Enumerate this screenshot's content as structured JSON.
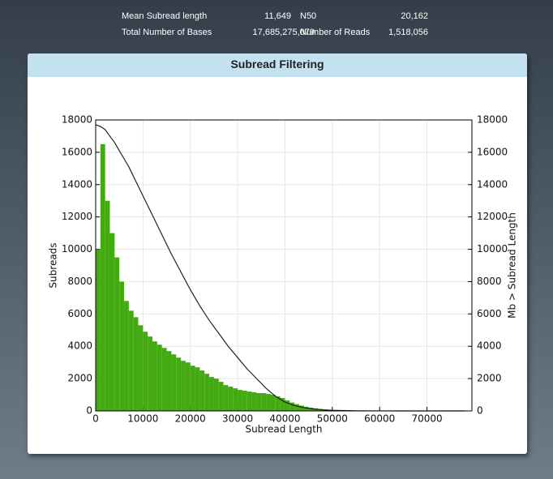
{
  "stats": [
    {
      "label": "Mean Subread length",
      "value": "11,649"
    },
    {
      "label": "N50",
      "value": "20,162"
    },
    {
      "label": "Total Number of Bases",
      "value": "17,685,275,079"
    },
    {
      "label": "Number of Reads",
      "value": "1,518,056"
    }
  ],
  "chart_data": {
    "type": "histogram",
    "title": "Subread Filtering",
    "xlabel": "Subread Length",
    "ylabel": "Subreads",
    "y2label": "Mb > Subread Length",
    "bins": [
      0,
      1000,
      2000,
      3000,
      4000,
      5000,
      6000,
      7000,
      8000,
      9000,
      10000,
      11000,
      12000,
      13000,
      14000,
      15000,
      16000,
      17000,
      18000,
      19000,
      20000,
      21000,
      22000,
      23000,
      24000,
      25000,
      26000,
      27000,
      28000,
      29000,
      30000,
      31000,
      32000,
      33000,
      34000,
      35000,
      36000,
      37000,
      38000,
      39000,
      40000,
      41000,
      42000,
      43000,
      44000,
      45000,
      46000,
      47000,
      48000,
      49000,
      50000,
      51000,
      52000,
      53000,
      54000,
      55000,
      56000,
      57000,
      58000,
      59000,
      60000,
      61000,
      62000,
      63000,
      64000,
      65000,
      66000,
      67000,
      68000,
      69000,
      70000,
      71000,
      72000,
      73000,
      74000,
      75000,
      76000,
      77000,
      78000
    ],
    "values": [
      10000,
      16500,
      13000,
      11000,
      9500,
      8000,
      6800,
      6200,
      5800,
      5300,
      4900,
      4600,
      4300,
      4100,
      3900,
      3700,
      3500,
      3300,
      3100,
      3000,
      2800,
      2700,
      2500,
      2300,
      2100,
      2000,
      1800,
      1600,
      1500,
      1400,
      1300,
      1250,
      1200,
      1150,
      1100,
      1100,
      1050,
      1000,
      900,
      800,
      650,
      520,
      420,
      330,
      260,
      200,
      160,
      120,
      90,
      70,
      50,
      40,
      30,
      25,
      20,
      15,
      10,
      8,
      6,
      5,
      4,
      3,
      3,
      2,
      2,
      1,
      1,
      1,
      1,
      1,
      0,
      0,
      0,
      0,
      0,
      0,
      0,
      0
    ],
    "color": "#44aa11",
    "line": {
      "axis": "y2",
      "color": "#222222",
      "x": [
        0,
        1000,
        2000,
        3000,
        4000,
        5000,
        6000,
        7000,
        8000,
        10000,
        12000,
        14000,
        16000,
        18000,
        20000,
        22000,
        24000,
        26000,
        28000,
        30000,
        32000,
        34000,
        36000,
        38000,
        40000,
        42000,
        44000,
        46000,
        48000,
        50000,
        55000,
        60000,
        65000,
        70000,
        78000
      ],
      "values": [
        17700,
        17600,
        17400,
        17000,
        16600,
        16100,
        15600,
        15100,
        14500,
        13300,
        12100,
        10900,
        9700,
        8600,
        7500,
        6500,
        5600,
        4800,
        4000,
        3300,
        2600,
        2000,
        1400,
        900,
        550,
        330,
        200,
        120,
        70,
        40,
        10,
        3,
        1,
        0,
        0
      ]
    },
    "xlim": [
      0,
      79500
    ],
    "xticks": [
      0,
      10000,
      20000,
      30000,
      40000,
      50000,
      60000,
      70000
    ],
    "ylim": [
      0,
      18000
    ],
    "yticks": [
      0,
      2000,
      4000,
      6000,
      8000,
      10000,
      12000,
      14000,
      16000,
      18000
    ],
    "y2lim": [
      0,
      18000
    ],
    "y2ticks": [
      0,
      2000,
      4000,
      6000,
      8000,
      10000,
      12000,
      14000,
      16000,
      18000
    ],
    "grid": true
  }
}
